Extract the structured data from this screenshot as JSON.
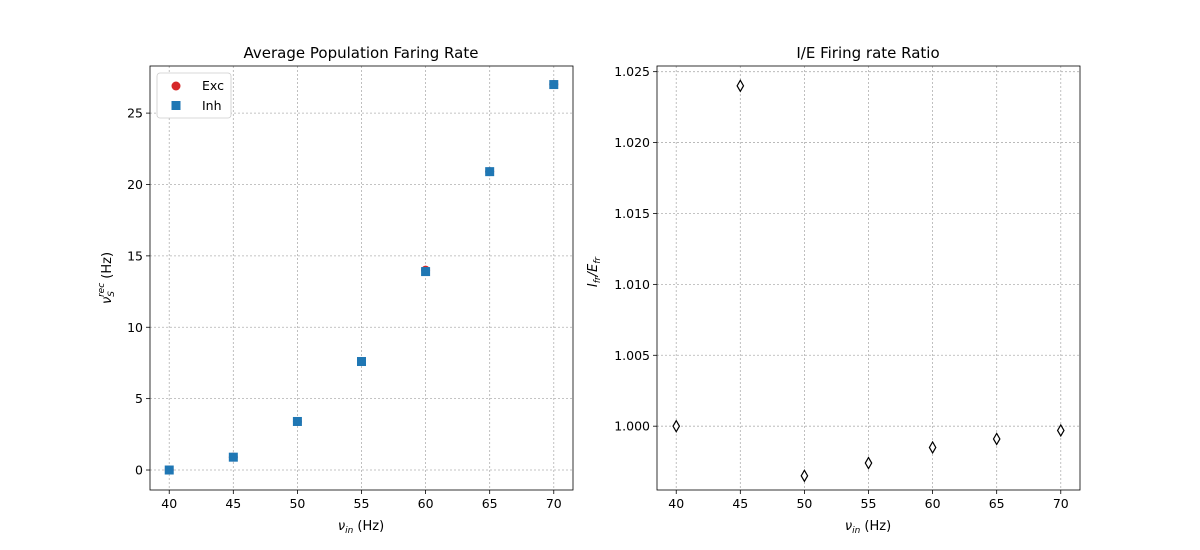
{
  "chart_data": [
    {
      "type": "scatter",
      "title": "Average Population Faring Rate",
      "xlabel_main": "ν",
      "xlabel_sub": "in",
      "xlabel_unit": " (Hz)",
      "ylabel_main": "ν",
      "ylabel_sub": "S",
      "ylabel_sup": "rec",
      "ylabel_unit": " (Hz)",
      "x": [
        40,
        45,
        50,
        55,
        60,
        65,
        70
      ],
      "xlim": [
        38.5,
        71.5
      ],
      "ylim": [
        -1.4,
        28.3
      ],
      "xticks": [
        40,
        45,
        50,
        55,
        60,
        65,
        70
      ],
      "yticks": [
        0,
        5,
        10,
        15,
        20,
        25
      ],
      "grid": true,
      "legend_position": "top-left",
      "series": [
        {
          "name": "Exc",
          "marker": "circle",
          "color": "#d62728",
          "values": [
            0.0,
            0.9,
            3.4,
            7.6,
            14.0,
            20.9,
            27.0
          ]
        },
        {
          "name": "Inh",
          "marker": "square",
          "color": "#1f77b4",
          "values": [
            0.0,
            0.9,
            3.4,
            7.6,
            13.9,
            20.9,
            27.0
          ]
        }
      ]
    },
    {
      "type": "scatter",
      "title": "I/E Firing rate Ratio",
      "xlabel_main": "ν",
      "xlabel_sub": "in",
      "xlabel_unit": " (Hz)",
      "ylabel_parts": [
        "I",
        "fr",
        "/E",
        "fr"
      ],
      "x": [
        40,
        45,
        50,
        55,
        60,
        65,
        70
      ],
      "xlim": [
        38.5,
        71.5
      ],
      "ylim": [
        0.9955,
        1.0254
      ],
      "xticks": [
        40,
        45,
        50,
        55,
        60,
        65,
        70
      ],
      "yticks": [
        1.0,
        1.005,
        1.01,
        1.015,
        1.02,
        1.025
      ],
      "ytick_labels": [
        "1.000",
        "1.005",
        "1.010",
        "1.015",
        "1.020",
        "1.025"
      ],
      "grid": true,
      "series": [
        {
          "marker": "thin-diamond",
          "color": "#000000",
          "values": [
            1.0,
            1.024,
            0.9965,
            0.9974,
            0.9985,
            0.9991,
            0.9997
          ]
        }
      ]
    }
  ]
}
